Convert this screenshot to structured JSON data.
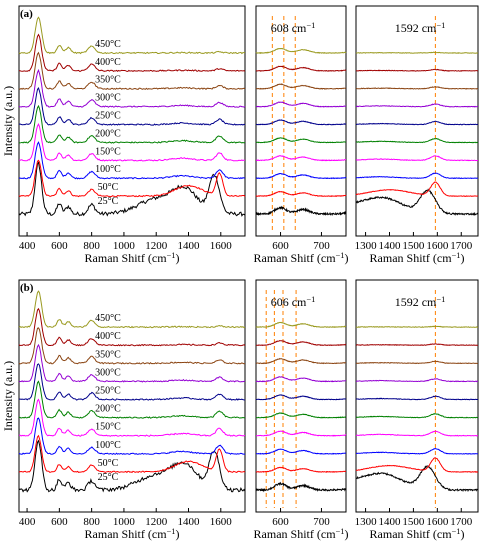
{
  "figure": {
    "row_a_label": "(a)",
    "row_b_label": "(b)",
    "ylabel": "Intensity (a.u.)",
    "xlabel": "Raman Shitf (cm",
    "xlabel_sup": "−1",
    "xlabel_close": ")",
    "line_colors": [
      "#000000",
      "#ff0000",
      "#0000ff",
      "#ff00ff",
      "#008000",
      "#00008b",
      "#9400d3",
      "#8b4513",
      "#a00000",
      "#9a9a20"
    ],
    "marker_color": "#ff8c1a"
  },
  "chart_data": [
    {
      "type": "line",
      "panel": "a-full",
      "title": "",
      "xlabel": "Raman Shitf (cm−1)",
      "ylabel": "Intensity (a.u.)",
      "xlim": [
        350,
        1750
      ],
      "x_ticks": [
        400,
        600,
        800,
        1000,
        1200,
        1400,
        1600
      ],
      "series": [
        {
          "name": "25°C"
        },
        {
          "name": "50°C"
        },
        {
          "name": "100°C"
        },
        {
          "name": "150°C"
        },
        {
          "name": "200°C"
        },
        {
          "name": "250°C"
        },
        {
          "name": "300°C"
        },
        {
          "name": "350°C"
        },
        {
          "name": "400°C"
        },
        {
          "name": "450°C"
        }
      ],
      "peaks": [
        480,
        600,
        800,
        1350,
        1592
      ]
    },
    {
      "type": "line",
      "panel": "a-zoom-608",
      "annotation": "608 cm",
      "annotation_sup": "−1",
      "xlim": [
        540,
        760
      ],
      "x_ticks": [
        600,
        700
      ],
      "marker_lines": [
        580,
        608,
        636
      ],
      "center": 608
    },
    {
      "type": "line",
      "panel": "a-zoom-1592",
      "annotation": "1592 cm",
      "annotation_sup": "−1",
      "xlim": [
        1260,
        1770
      ],
      "x_ticks": [
        1300,
        1400,
        1500,
        1600,
        1700
      ],
      "marker_lines": [
        1592
      ]
    },
    {
      "type": "line",
      "panel": "b-full",
      "title": "",
      "xlabel": "Raman Shitf (cm−1)",
      "ylabel": "Intensity (a.u.)",
      "xlim": [
        350,
        1750
      ],
      "x_ticks": [
        400,
        600,
        800,
        1000,
        1200,
        1400,
        1600
      ],
      "series": [
        {
          "name": "25°C"
        },
        {
          "name": "50°C"
        },
        {
          "name": "100°C"
        },
        {
          "name": "150°C"
        },
        {
          "name": "200°C"
        },
        {
          "name": "250°C"
        },
        {
          "name": "300°C"
        },
        {
          "name": "350°C"
        },
        {
          "name": "400°C"
        },
        {
          "name": "450°C"
        }
      ],
      "peaks": [
        480,
        600,
        800,
        1350,
        1592
      ]
    },
    {
      "type": "line",
      "panel": "b-zoom-606",
      "annotation": "606 cm",
      "annotation_sup": "−1",
      "xlim": [
        540,
        760
      ],
      "x_ticks": [
        600,
        700
      ],
      "marker_lines": [
        565,
        585,
        606,
        638
      ],
      "center": 606
    },
    {
      "type": "line",
      "panel": "b-zoom-1592",
      "annotation": "1592 cm",
      "annotation_sup": "−1",
      "xlim": [
        1260,
        1770
      ],
      "x_ticks": [
        1300,
        1400,
        1500,
        1600,
        1700
      ],
      "marker_lines": [
        1592
      ]
    }
  ]
}
